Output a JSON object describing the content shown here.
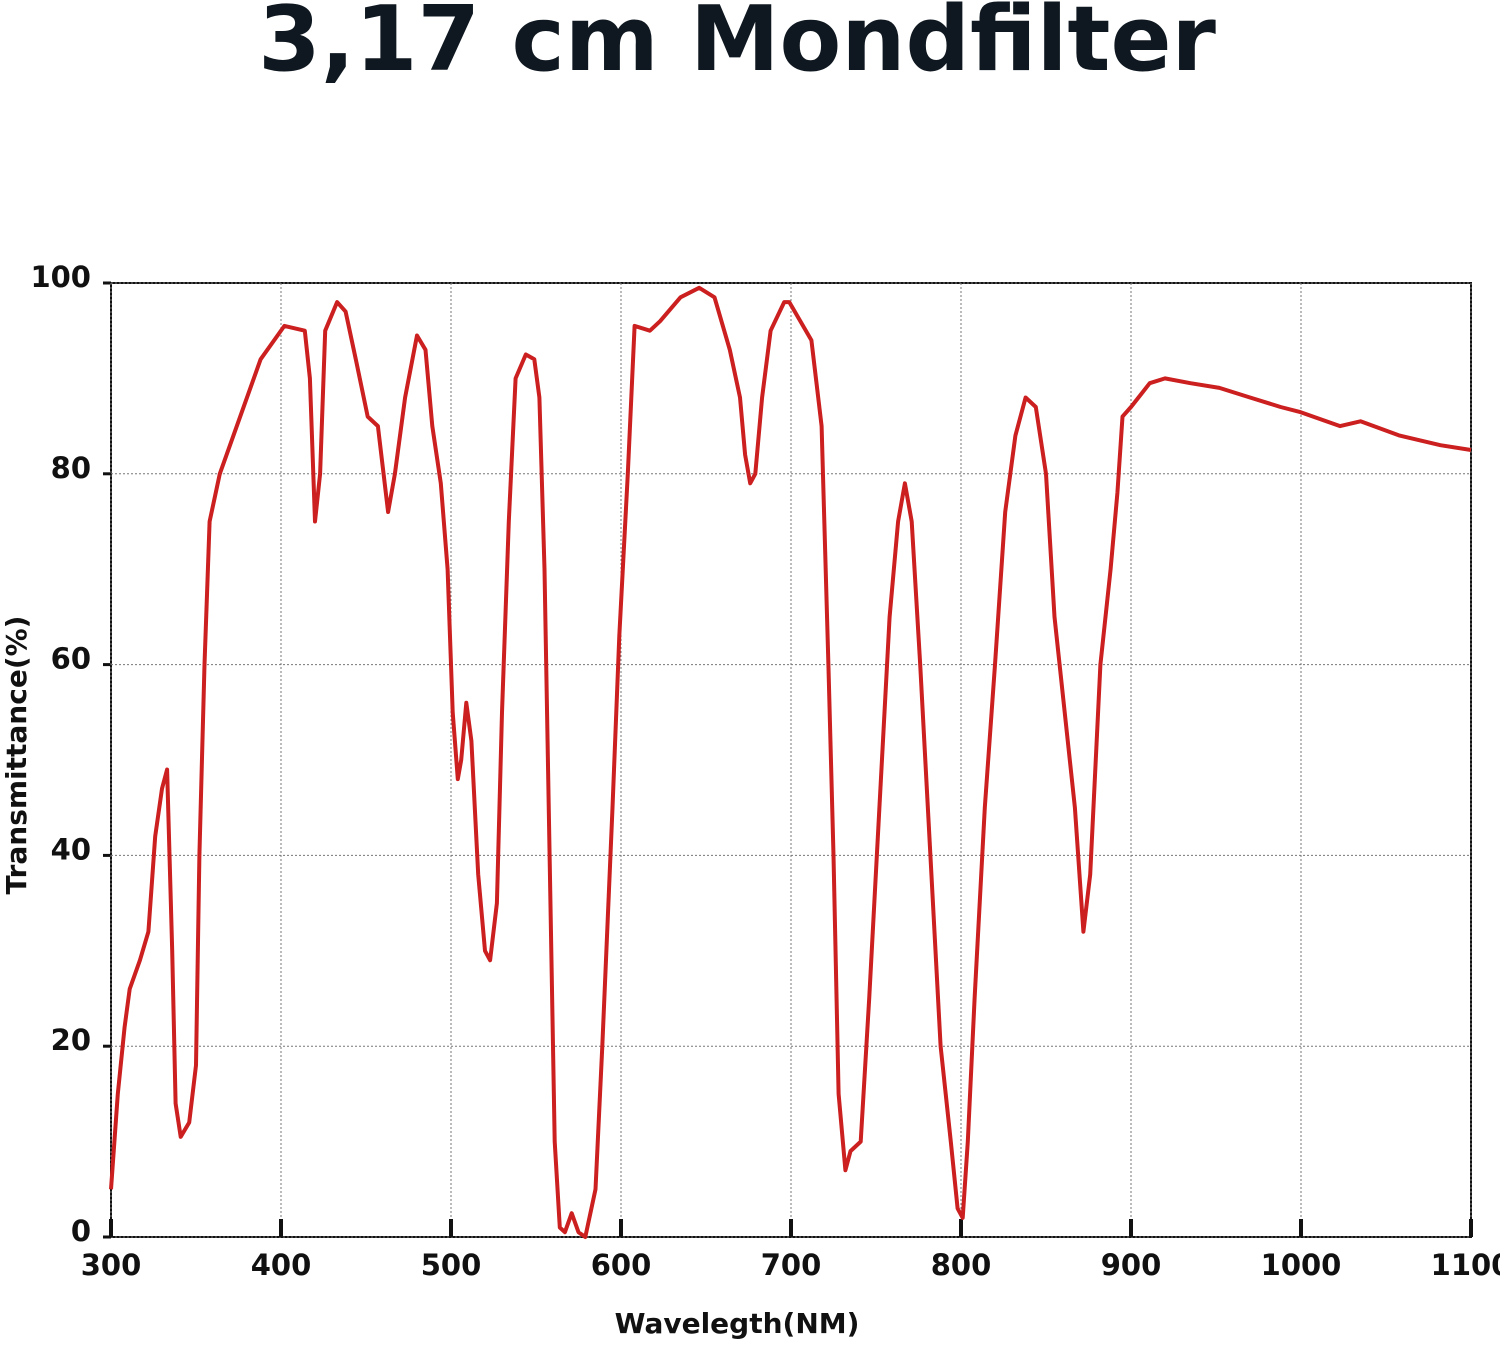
{
  "chart_data": {
    "type": "line",
    "title": "3,17 cm Mondfilter",
    "x_label": "Wavelegth(NM)",
    "y_label": "Transmittance(%)",
    "xlim": [
      300,
      1100
    ],
    "ylim": [
      0,
      100
    ],
    "xticks": [
      300,
      400,
      500,
      600,
      700,
      800,
      900,
      1000,
      1100
    ],
    "yticks": [
      0,
      20,
      40,
      60,
      80,
      100
    ],
    "grid": true,
    "x": [
      300,
      304,
      308,
      311,
      317,
      322,
      326,
      330,
      333,
      336,
      338,
      341,
      346,
      350,
      352,
      355,
      358,
      364,
      376,
      388,
      402,
      414,
      417,
      420,
      423,
      426,
      433,
      438,
      444,
      451,
      457,
      463,
      467,
      473,
      480,
      485,
      489,
      494,
      498,
      501,
      504,
      506,
      509,
      512,
      516,
      520,
      523,
      527,
      530,
      534,
      538,
      544,
      549,
      552,
      555,
      558,
      561,
      564,
      567,
      571,
      575,
      579,
      585,
      589,
      595,
      599,
      604,
      608,
      617,
      623,
      635,
      646,
      655,
      664,
      670,
      673,
      676,
      679,
      683,
      688,
      696,
      699,
      712,
      718,
      722,
      725,
      728,
      732,
      735,
      741,
      746,
      752,
      758,
      763,
      767,
      771,
      776,
      782,
      788,
      794,
      798,
      801,
      804,
      808,
      814,
      820,
      826,
      832,
      838,
      844,
      850,
      855,
      861,
      867,
      872,
      876,
      882,
      888,
      892,
      895,
      900,
      911,
      920,
      935,
      952,
      970,
      988,
      999,
      1023,
      1035,
      1058,
      1082,
      1100
    ],
    "series": [
      {
        "color": "#cc1f1f",
        "values": [
          5,
          15,
          22,
          26,
          29,
          32,
          42,
          47,
          49,
          30,
          14,
          10.5,
          12,
          18,
          40,
          60,
          75,
          80,
          86,
          92,
          95.5,
          95,
          90,
          75,
          80,
          95,
          98,
          97,
          92,
          86,
          85,
          76,
          80,
          88,
          94.5,
          93,
          85,
          79,
          70,
          55,
          48,
          50,
          56,
          52,
          38,
          30,
          29,
          35,
          55,
          75,
          90,
          92.5,
          92,
          88,
          70,
          40,
          10,
          1,
          0.5,
          2.5,
          0.5,
          0,
          5,
          20,
          45,
          63,
          80,
          95.5,
          95,
          96,
          98.5,
          99.5,
          98.5,
          93,
          88,
          82,
          79,
          80,
          88,
          95,
          98,
          98,
          94,
          85,
          60,
          40,
          15,
          7,
          9,
          10,
          25,
          45,
          65,
          75,
          79,
          75,
          60,
          40,
          20,
          10,
          3,
          2,
          10,
          25,
          45,
          60,
          76,
          84,
          88,
          87,
          80,
          65,
          55,
          45,
          32,
          38,
          60,
          70,
          78,
          86,
          87,
          89.5,
          90,
          89.5,
          89,
          88,
          87,
          86.5,
          85,
          85.5,
          84,
          83,
          82.5
        ]
      }
    ]
  }
}
